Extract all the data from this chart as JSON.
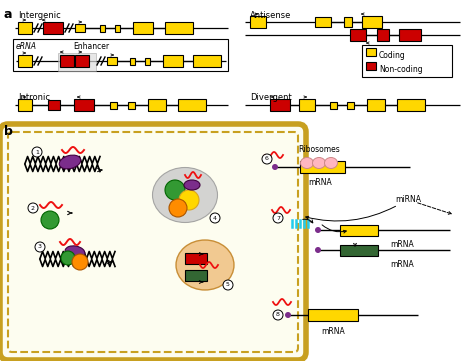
{
  "fig_width": 4.74,
  "fig_height": 3.61,
  "dpi": 100,
  "background": "#ffffff",
  "panel_a_label": "a",
  "panel_b_label": "b",
  "intergenic_label": "Intergenic",
  "antisense_label": "Antisense",
  "intronic_label": "Intronic",
  "divergent_label": "Divergent",
  "erna_label": "eRNA",
  "enhancer_label": "Enhancer",
  "coding_label": "Coding",
  "noncoding_label": "Non-coding",
  "yellow": "#FFD700",
  "red": "#CC0000",
  "cell_fill": "#FDFDF0",
  "cell_border": "#C8A020",
  "ribosomes_label": "Ribosomes",
  "mrna_label": "mRNA",
  "mirna_label": "miRNA",
  "purple": "#7B2D8B",
  "green": "#339933",
  "orange": "#FF8C00",
  "bright_red": "#EE1111",
  "cyan": "#22CCEE",
  "pink_ribosome": "#FFB6C1",
  "dark_green_box": "#336633"
}
